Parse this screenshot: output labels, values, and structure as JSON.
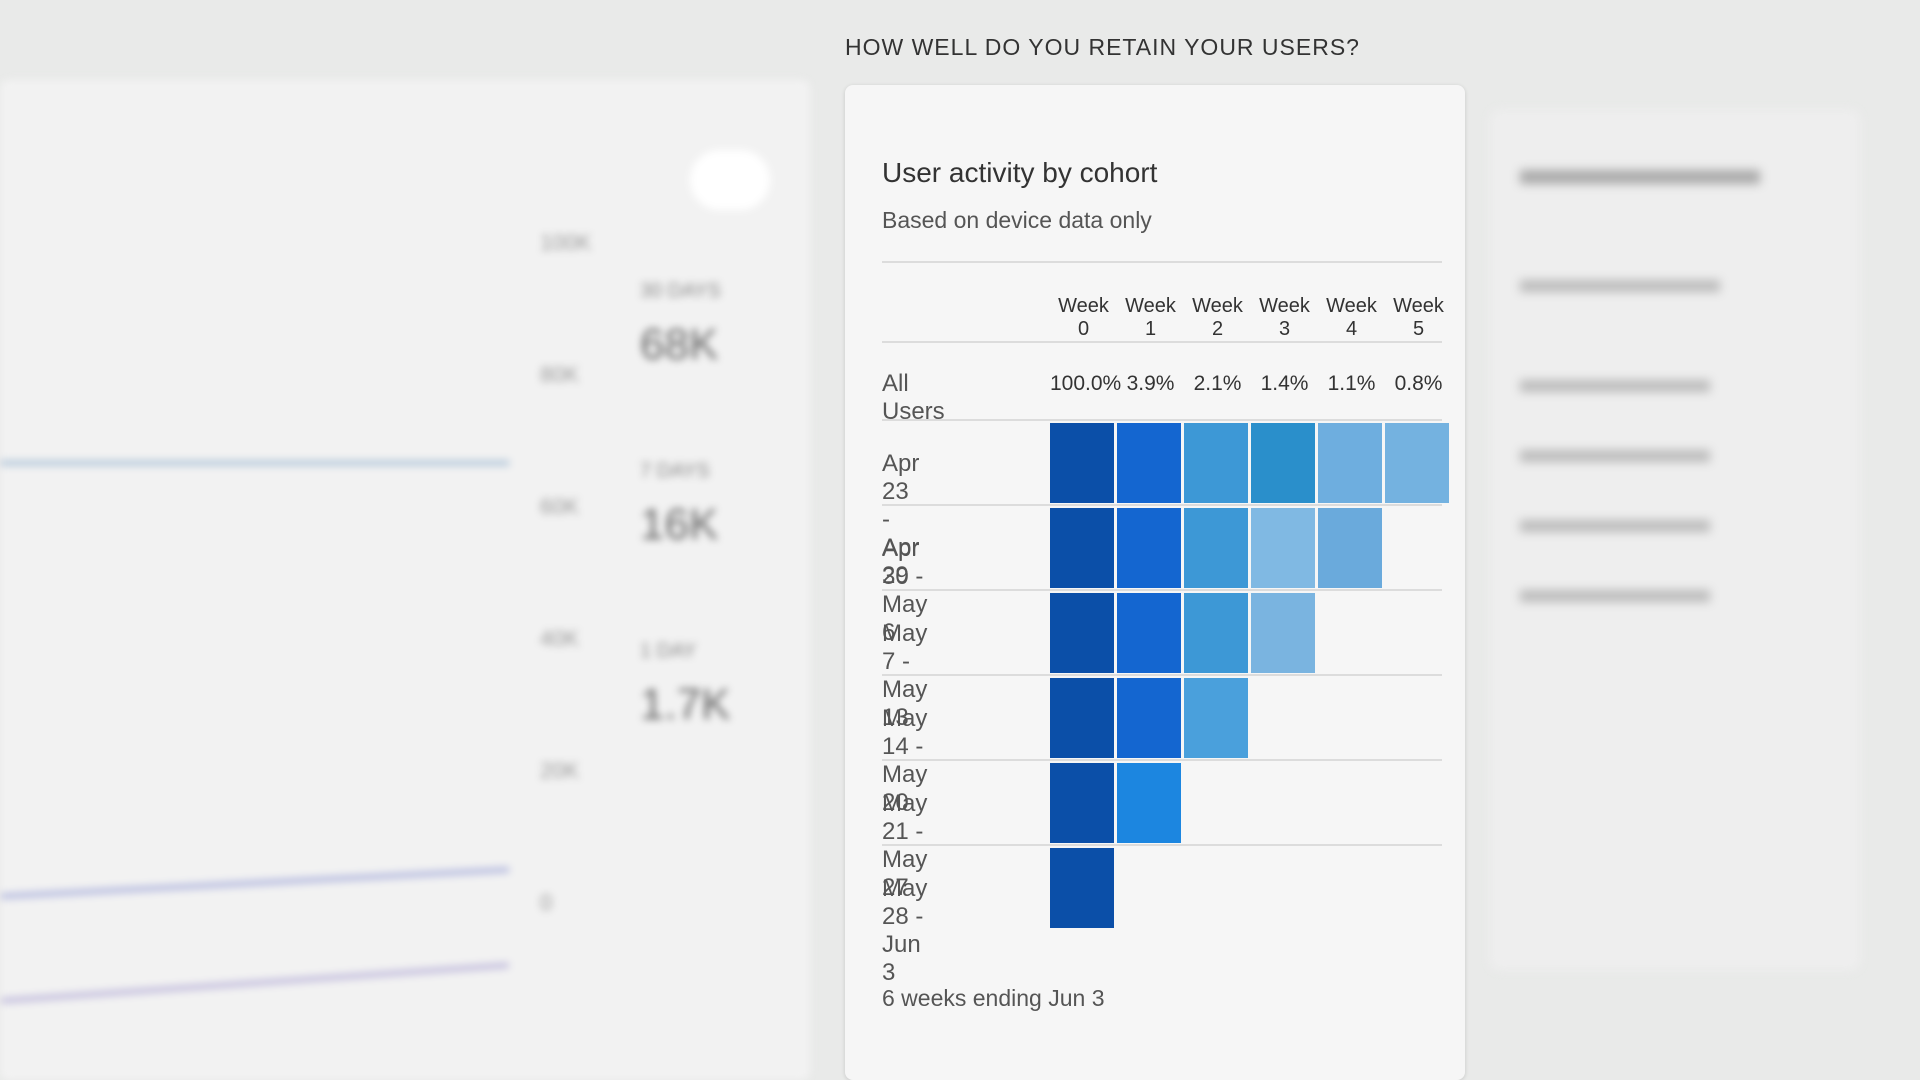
{
  "header": {
    "question": "HOW WELL DO YOU RETAIN YOUR USERS?"
  },
  "overview": {
    "axis_labels": [
      "100K",
      "80K",
      "60K",
      "40K",
      "20K",
      "0"
    ],
    "stats": [
      {
        "label": "30 DAYS",
        "value": "68K"
      },
      {
        "label": "7 DAYS",
        "value": "16K"
      },
      {
        "label": "1 DAY",
        "value": "1.7K"
      }
    ]
  },
  "card": {
    "title": "User activity by cohort",
    "subtitle": "Based on device data only",
    "columns": [
      "Week 0",
      "Week 1",
      "Week 2",
      "Week 3",
      "Week 4",
      "Week 5"
    ],
    "all_users": {
      "label": "All Users",
      "values": [
        "100.0%",
        "3.9%",
        "2.1%",
        "1.4%",
        "1.1%",
        "0.8%"
      ]
    },
    "cohorts": [
      {
        "label": "Apr 23 - Apr 29",
        "colors": [
          "#0b4fa8",
          "#1466d0",
          "#3d98d6",
          "#2a8fcb",
          "#6eaedf",
          "#74b2e0"
        ]
      },
      {
        "label": "Apr 30 - May 6",
        "colors": [
          "#0b4fa8",
          "#1466d0",
          "#3d98d6",
          "#80b9e3",
          "#6aaadc"
        ]
      },
      {
        "label": "May 7 - May 13",
        "colors": [
          "#0b4fa8",
          "#1466d0",
          "#3d98d6",
          "#7ab4e0"
        ]
      },
      {
        "label": "May 14 - May 20",
        "colors": [
          "#0b4fa8",
          "#1466d0",
          "#4aa0dc"
        ]
      },
      {
        "label": "May 21 - May 27",
        "colors": [
          "#0b4fa8",
          "#1c86e0"
        ]
      },
      {
        "label": "May 28 - Jun 3",
        "colors": [
          "#0b4fa8"
        ]
      }
    ],
    "footer": "6 weeks ending Jun 3"
  }
}
